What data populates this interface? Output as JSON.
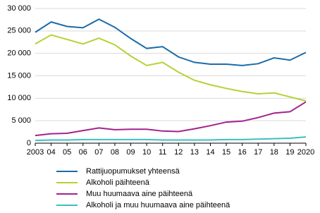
{
  "chart_data": {
    "type": "line",
    "categories": [
      "2003",
      "04",
      "05",
      "06",
      "07",
      "08",
      "09",
      "10",
      "11",
      "12",
      "13",
      "14",
      "15",
      "16",
      "17",
      "18",
      "19",
      "2020"
    ],
    "series": [
      {
        "name": "Rattijuopumukset yhteensä",
        "color": "#1b6ca8",
        "values": [
          24700,
          27000,
          26000,
          25700,
          27600,
          25800,
          23300,
          21100,
          21500,
          19200,
          18000,
          17600,
          17600,
          17300,
          17700,
          19000,
          18500,
          20200
        ]
      },
      {
        "name": "Alkoholi päihteenä",
        "color": "#b4d234",
        "values": [
          22100,
          24100,
          23100,
          22100,
          23400,
          21900,
          19400,
          17300,
          18000,
          15800,
          14000,
          13000,
          12200,
          11500,
          11000,
          11200,
          10300,
          9400
        ]
      },
      {
        "name": "Muu huumaava aine päihteenä",
        "color": "#a3228c",
        "values": [
          1700,
          2100,
          2200,
          2800,
          3400,
          3000,
          3100,
          3100,
          2700,
          2600,
          3200,
          3900,
          4700,
          4900,
          5700,
          6700,
          7000,
          9200
        ]
      },
      {
        "name": "Alkoholi ja muu huumaava aine päihteenä",
        "color": "#3cbfc4",
        "values": [
          600,
          700,
          700,
          800,
          800,
          800,
          800,
          800,
          700,
          700,
          700,
          700,
          800,
          800,
          900,
          1000,
          1100,
          1400
        ]
      }
    ],
    "ylim": [
      0,
      30000
    ],
    "yticks": [
      0,
      {
        "value": 5000,
        "label": "5 000"
      },
      {
        "value": 10000,
        "label": "10 000"
      },
      {
        "value": 15000,
        "label": "15 000"
      },
      {
        "value": 20000,
        "label": "20 000"
      },
      {
        "value": 25000,
        "label": "25 000"
      },
      {
        "value": 30000,
        "label": "30 000"
      }
    ],
    "grid": true
  }
}
